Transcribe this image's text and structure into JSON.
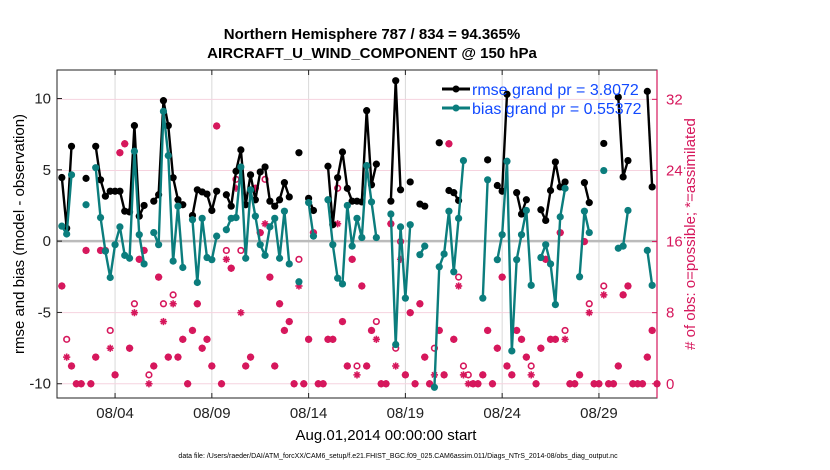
{
  "chart_data": {
    "type": "line",
    "title": [
      "Northern Hemisphere 787 / 834 = 94.365%",
      "AIRCRAFT_U_WIND_COMPONENT @ 150 hPa"
    ],
    "xlabel": "Aug.01,2014 00:00:00 start",
    "ylabel_left": "rmse and bias (model - observation)",
    "ylabel_right": "# of obs: o=possible; *=assimilated",
    "footnote": "data file: /Users/raeder/DAI/ATM_forcXX/CAM6_setup/f.e21.FHIST_BGC.f09_025.CAM6assim.011/Diags_NTrS_2014-08/obs_diag_output.nc",
    "x_ticks": [
      "08/04",
      "08/09",
      "08/14",
      "08/19",
      "08/24",
      "08/29"
    ],
    "xlim": [
      "08/01 00:00",
      "09/01 00:00"
    ],
    "ylim_left": [
      -11,
      12
    ],
    "yticks_left": [
      -10,
      -5,
      0,
      5,
      10
    ],
    "ylim_right": [
      -1.6,
      35.3
    ],
    "yticks_right": [
      0,
      8,
      16,
      24,
      32
    ],
    "grid": true,
    "legend_position": "top-right",
    "colors": {
      "rmse": "#000000",
      "bias": "#0b7d7d",
      "obs": "#d6175c",
      "legend_text": "#1149ff",
      "zero_line": "#bbbbbb"
    },
    "series": [
      {
        "name": "rmse grand pr = 3.8072",
        "key": "rmse"
      },
      {
        "name": "bias grand pr = 0.55372",
        "key": "bias"
      }
    ],
    "columns": [
      "time",
      "rmse",
      "bias",
      "possible",
      "assimilated"
    ],
    "rows": [
      [
        "08/01 06:00",
        4.46,
        1.05,
        11,
        11
      ],
      [
        "08/01 12:00",
        0.9,
        0.5,
        5,
        3
      ],
      [
        "08/01 18:00",
        6.65,
        4.65,
        2,
        2
      ],
      [
        "08/02 00:00",
        null,
        null,
        0,
        0
      ],
      [
        "08/02 06:00",
        null,
        null,
        0,
        0
      ],
      [
        "08/02 12:00",
        4.4,
        2.55,
        15,
        15
      ],
      [
        "08/02 18:00",
        null,
        null,
        0,
        0
      ],
      [
        "08/03 00:00",
        6.65,
        5.15,
        3,
        3
      ],
      [
        "08/03 06:00",
        4.3,
        1.65,
        15,
        15
      ],
      [
        "08/03 12:00",
        3.15,
        -0.7,
        15,
        15
      ],
      [
        "08/03 18:00",
        3.5,
        -2.55,
        6,
        4
      ],
      [
        "08/04 00:00",
        3.5,
        -0.25,
        1,
        1
      ],
      [
        "08/04 06:00",
        3.5,
        1.0,
        26,
        26
      ],
      [
        "08/04 12:00",
        2.1,
        -1.0,
        27,
        27
      ],
      [
        "08/04 18:00",
        2.05,
        -1.2,
        4,
        4
      ],
      [
        "08/05 00:00",
        8.1,
        6.3,
        9,
        8
      ],
      [
        "08/05 06:00",
        1.75,
        0.45,
        14,
        14
      ],
      [
        "08/05 12:00",
        2.5,
        -1.6,
        15,
        15
      ],
      [
        "08/05 18:00",
        null,
        null,
        1,
        0
      ],
      [
        "08/06 00:00",
        2.8,
        0.6,
        2,
        2
      ],
      [
        "08/06 06:00",
        3.25,
        -0.25,
        12,
        12
      ],
      [
        "08/06 12:00",
        9.85,
        9.1,
        9,
        7
      ],
      [
        "08/06 18:00",
        8.1,
        6.0,
        3,
        3
      ],
      [
        "08/07 00:00",
        4.45,
        -1.4,
        10,
        9
      ],
      [
        "08/07 06:00",
        2.9,
        2.45,
        3,
        3
      ],
      [
        "08/07 12:00",
        2.55,
        -1.85,
        5,
        5
      ],
      [
        "08/07 18:00",
        null,
        null,
        0,
        0
      ],
      [
        "08/08 00:00",
        1.8,
        1.5,
        6,
        6
      ],
      [
        "08/08 06:00",
        3.6,
        -2.9,
        9,
        9
      ],
      [
        "08/08 12:00",
        3.45,
        1.6,
        4,
        4
      ],
      [
        "08/08 18:00",
        3.3,
        -1.15,
        5,
        5
      ],
      [
        "08/09 00:00",
        2.15,
        -1.3,
        2,
        2
      ],
      [
        "08/09 06:00",
        3.5,
        0.35,
        29,
        29
      ],
      [
        "08/09 12:00",
        null,
        null,
        0,
        0
      ],
      [
        "08/09 18:00",
        3.25,
        0.8,
        15,
        14
      ],
      [
        "08/10 00:00",
        2.45,
        1.6,
        13,
        13
      ],
      [
        "08/10 06:00",
        4.9,
        1.65,
        23,
        22
      ],
      [
        "08/10 12:00",
        6.4,
        5.2,
        15,
        8
      ],
      [
        "08/10 18:00",
        2.55,
        -1.2,
        2,
        2
      ],
      [
        "08/11 00:00",
        4.65,
        3.6,
        3,
        3
      ],
      [
        "08/11 06:00",
        2.9,
        1.75,
        22,
        22
      ],
      [
        "08/11 12:00",
        4.85,
        -0.25,
        17,
        17
      ],
      [
        "08/11 18:00",
        5.2,
        -1.0,
        23,
        18
      ],
      [
        "08/12 00:00",
        2.8,
        1.0,
        12,
        12
      ],
      [
        "08/12 06:00",
        2.45,
        1.6,
        2,
        2
      ],
      [
        "08/12 12:00",
        2.9,
        -1.2,
        9,
        9
      ],
      [
        "08/12 18:00",
        4.1,
        2.1,
        6,
        6
      ],
      [
        "08/13 00:00",
        3.1,
        -1.6,
        7,
        7
      ],
      [
        "08/13 06:00",
        null,
        null,
        0,
        0
      ],
      [
        "08/13 12:00",
        6.2,
        -2.85,
        14,
        11
      ],
      [
        "08/13 18:00",
        null,
        null,
        0,
        0
      ],
      [
        "08/14 00:00",
        3.0,
        2.7,
        5,
        5
      ],
      [
        "08/14 06:00",
        2.15,
        0.35,
        17,
        17
      ],
      [
        "08/14 12:00",
        null,
        null,
        0,
        0
      ],
      [
        "08/14 18:00",
        null,
        null,
        0,
        0
      ],
      [
        "08/15 00:00",
        5.25,
        2.9,
        5,
        5
      ],
      [
        "08/15 06:00",
        1.15,
        -0.25,
        5,
        5
      ],
      [
        "08/15 12:00",
        4.45,
        -2.6,
        22,
        18
      ],
      [
        "08/15 18:00",
        6.25,
        -3.0,
        7,
        7
      ],
      [
        "08/16 00:00",
        3.7,
        2.5,
        2,
        2
      ],
      [
        "08/16 06:00",
        2.8,
        -0.35,
        14,
        14
      ],
      [
        "08/16 12:00",
        2.8,
        1.6,
        2,
        1
      ],
      [
        "08/16 18:00",
        2.75,
        0.25,
        11,
        11
      ],
      [
        "08/17 00:00",
        9.15,
        5.3,
        2,
        2
      ],
      [
        "08/17 06:00",
        3.95,
        2.75,
        6,
        6
      ],
      [
        "08/17 12:00",
        5.4,
        0.25,
        7,
        5
      ],
      [
        "08/17 18:00",
        null,
        null,
        0,
        0
      ],
      [
        "08/18 00:00",
        null,
        null,
        0,
        0
      ],
      [
        "08/18 06:00",
        2.8,
        1.9,
        18,
        18
      ],
      [
        "08/18 12:00",
        11.25,
        -7.25,
        4,
        2
      ],
      [
        "08/18 18:00",
        3.6,
        1.0,
        16,
        14
      ],
      [
        "08/19 00:00",
        null,
        -4.0,
        1,
        1
      ],
      [
        "08/19 06:00",
        4.15,
        1.15,
        8,
        8
      ],
      [
        "08/19 12:00",
        null,
        null,
        0,
        0
      ],
      [
        "08/19 18:00",
        2.6,
        -0.95,
        9,
        9
      ],
      [
        "08/20 00:00",
        2.45,
        -0.35,
        3,
        3
      ],
      [
        "08/20 06:00",
        null,
        null,
        0,
        0
      ],
      [
        "08/20 12:00",
        null,
        -10.25,
        4,
        1
      ],
      [
        "08/20 18:00",
        6.9,
        -1.8,
        6,
        6
      ],
      [
        "08/21 00:00",
        null,
        -0.9,
        1,
        1
      ],
      [
        "08/21 06:00",
        3.55,
        2.1,
        27,
        27
      ],
      [
        "08/21 12:00",
        3.4,
        -2.15,
        5,
        5
      ],
      [
        "08/21 18:00",
        2.85,
        1.6,
        12,
        11
      ],
      [
        "08/22 00:00",
        null,
        5.65,
        2,
        1
      ],
      [
        "08/22 06:00",
        null,
        null,
        1,
        0
      ],
      [
        "08/22 12:00",
        null,
        null,
        0,
        0
      ],
      [
        "08/22 18:00",
        null,
        null,
        0,
        0
      ],
      [
        "08/23 00:00",
        null,
        -4.0,
        1,
        1
      ],
      [
        "08/23 06:00",
        5.7,
        4.3,
        6,
        6
      ],
      [
        "08/23 12:00",
        null,
        null,
        0,
        0
      ],
      [
        "08/23 18:00",
        3.9,
        -1.3,
        4,
        4
      ],
      [
        "08/24 00:00",
        3.5,
        0.45,
        12,
        12
      ],
      [
        "08/24 06:00",
        10.3,
        5.6,
        2,
        2
      ],
      [
        "08/24 12:00",
        null,
        -7.7,
        1,
        1
      ],
      [
        "08/24 18:00",
        3.4,
        -1.3,
        6,
        6
      ],
      [
        "08/25 00:00",
        1.9,
        0.45,
        5,
        5
      ],
      [
        "08/25 06:00",
        2.9,
        2.15,
        3,
        3
      ],
      [
        "08/25 12:00",
        null,
        -3.1,
        2,
        1
      ],
      [
        "08/25 18:00",
        null,
        null,
        0,
        0
      ],
      [
        "08/26 00:00",
        2.2,
        -1.15,
        4,
        4
      ],
      [
        "08/26 06:00",
        1.45,
        -0.25,
        14,
        14
      ],
      [
        "08/26 12:00",
        3.55,
        -1.6,
        5,
        5
      ],
      [
        "08/26 18:00",
        5.55,
        -4.45,
        5,
        5
      ],
      [
        "08/27 00:00",
        3.8,
        1.7,
        17,
        17
      ],
      [
        "08/27 06:00",
        4.15,
        3.7,
        6,
        5
      ],
      [
        "08/27 12:00",
        null,
        null,
        0,
        0
      ],
      [
        "08/27 18:00",
        null,
        null,
        0,
        0
      ],
      [
        "08/28 00:00",
        null,
        -2.5,
        1,
        1
      ],
      [
        "08/28 06:00",
        4.1,
        2.1,
        16,
        16
      ],
      [
        "08/28 12:00",
        2.7,
        0.6,
        9,
        8
      ],
      [
        "08/28 18:00",
        null,
        null,
        0,
        0
      ],
      [
        "08/29 00:00",
        null,
        null,
        0,
        0
      ],
      [
        "08/29 06:00",
        6.85,
        4.95,
        11,
        10
      ],
      [
        "08/29 12:00",
        null,
        null,
        0,
        0
      ],
      [
        "08/29 18:00",
        null,
        null,
        0,
        0
      ],
      [
        "08/30 00:00",
        10.1,
        -0.5,
        2,
        2
      ],
      [
        "08/30 06:00",
        4.5,
        -0.35,
        10,
        10
      ],
      [
        "08/30 12:00",
        5.65,
        2.15,
        11,
        11
      ],
      [
        "08/30 18:00",
        null,
        null,
        0,
        0
      ],
      [
        "08/31 00:00",
        null,
        null,
        0,
        0
      ],
      [
        "08/31 06:00",
        null,
        null,
        0,
        0
      ],
      [
        "08/31 12:00",
        10.5,
        -0.65,
        3,
        3
      ],
      [
        "08/31 18:00",
        3.8,
        -3.1,
        6,
        6
      ],
      [
        "09/01 00:00",
        null,
        null,
        0,
        0
      ]
    ]
  }
}
